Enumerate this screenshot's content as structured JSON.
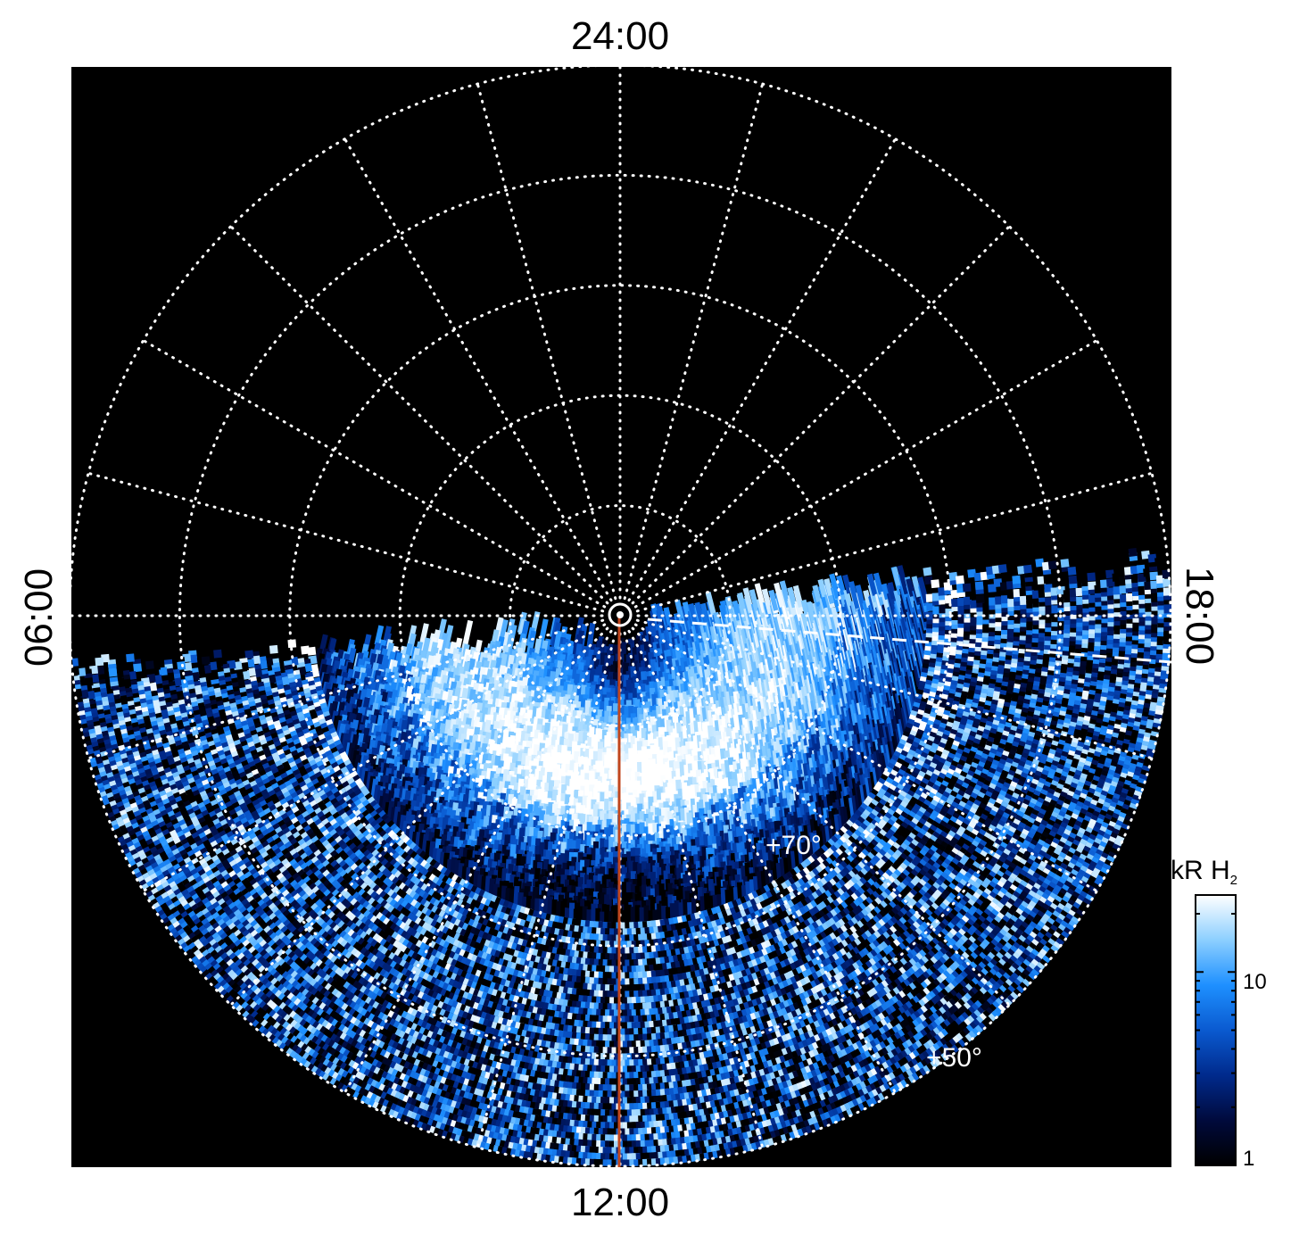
{
  "local_time_labels": {
    "top": "24:00",
    "bottom": "12:00",
    "left": "06:00",
    "right": "18:00"
  },
  "latitude_labels": [
    "+70°",
    "+50°"
  ],
  "colorbar": {
    "title_main": "kR H",
    "title_sub": "2",
    "ticks": [
      "10",
      "1"
    ],
    "tick_values": [
      10,
      1
    ],
    "range": [
      1,
      25
    ],
    "scale": "log",
    "colors": [
      "#000000",
      "#000a3c",
      "#002a8c",
      "#0a5ad0",
      "#1e90ff",
      "#8ccfff",
      "#ffffff"
    ]
  },
  "chart_data": {
    "type": "heatmap",
    "projection": "polar",
    "title": "",
    "background": "#000000",
    "grid": true,
    "grid_color": "#ffffff",
    "meridian_step_hours": 1,
    "latitude_circles_deg": [
      40,
      50,
      60,
      70,
      80
    ],
    "center_marker": "circle",
    "highlight_meridian": {
      "local_time": "12:00",
      "color": "#c0461e"
    },
    "dashed_line_color": "#ffffff",
    "emission_band": {
      "peak_local_time": "12:00",
      "latitude_deg": 75,
      "peak_kR": 25
    },
    "coverage": "dayside hemisphere"
  }
}
